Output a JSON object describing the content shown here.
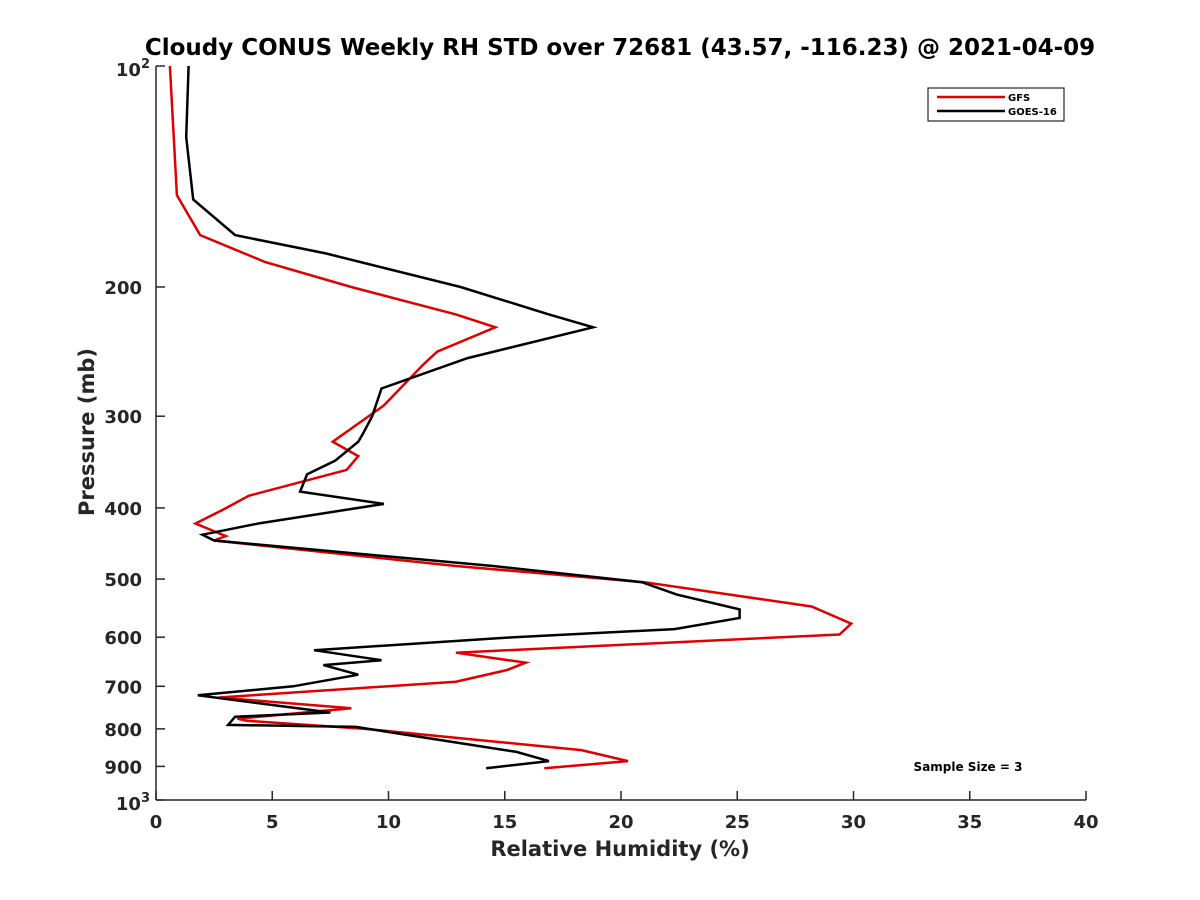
{
  "chart_data": {
    "type": "line",
    "title": "Cloudy CONUS Weekly RH STD over 72681 (43.57, -116.23) @ 2021-04-09",
    "xlabel": "Relative Humidity (%)",
    "ylabel": "Pressure (mb)",
    "xlim": [
      0,
      40
    ],
    "ylim": [
      100,
      1000
    ],
    "y_scale": "log",
    "y_reversed": true,
    "x_ticks": [
      0,
      5,
      10,
      15,
      20,
      25,
      30,
      35,
      40
    ],
    "y_ticks": [
      {
        "value": 100,
        "label": "10",
        "sup": "2"
      },
      {
        "value": 200,
        "label": "200"
      },
      {
        "value": 300,
        "label": "300"
      },
      {
        "value": 400,
        "label": "400"
      },
      {
        "value": 500,
        "label": "500"
      },
      {
        "value": 600,
        "label": "600"
      },
      {
        "value": 700,
        "label": "700"
      },
      {
        "value": 800,
        "label": "800"
      },
      {
        "value": 900,
        "label": "900"
      },
      {
        "value": 1000,
        "label": "10",
        "sup": "3"
      }
    ],
    "legend_position": "top-right",
    "grid": false,
    "annotation": "Sample Size = 3",
    "series": [
      {
        "name": "GFS",
        "color": "#e00000",
        "points": [
          [
            0.6,
            100
          ],
          [
            0.9,
            150
          ],
          [
            1.9,
            170
          ],
          [
            4.7,
            185
          ],
          [
            8.4,
            200
          ],
          [
            12.9,
            218
          ],
          [
            14.6,
            227
          ],
          [
            12.1,
            245
          ],
          [
            11.5,
            255
          ],
          [
            9.8,
            290
          ],
          [
            7.6,
            325
          ],
          [
            8.7,
            340
          ],
          [
            8.2,
            355
          ],
          [
            4.0,
            385
          ],
          [
            2.9,
            402
          ],
          [
            1.7,
            420
          ],
          [
            3.0,
            437
          ],
          [
            2.5,
            443
          ],
          [
            12.9,
            480
          ],
          [
            21.0,
            505
          ],
          [
            28.2,
            545
          ],
          [
            29.9,
            575
          ],
          [
            29.4,
            595
          ],
          [
            12.9,
            630
          ],
          [
            15.9,
            650
          ],
          [
            15.1,
            665
          ],
          [
            12.9,
            690
          ],
          [
            2.7,
            725
          ],
          [
            8.4,
            750
          ],
          [
            3.5,
            775
          ],
          [
            3.9,
            780
          ],
          [
            9.0,
            800
          ],
          [
            18.3,
            855
          ],
          [
            20.3,
            885
          ],
          [
            16.7,
            905
          ]
        ]
      },
      {
        "name": "GOES-16",
        "color": "#000000",
        "points": [
          [
            1.4,
            100
          ],
          [
            1.3,
            125
          ],
          [
            1.6,
            152
          ],
          [
            3.4,
            170
          ],
          [
            7.3,
            180
          ],
          [
            13.1,
            200
          ],
          [
            16.9,
            218
          ],
          [
            18.8,
            227
          ],
          [
            13.4,
            250
          ],
          [
            9.7,
            275
          ],
          [
            9.3,
            300
          ],
          [
            8.9,
            317
          ],
          [
            8.7,
            325
          ],
          [
            7.7,
            345
          ],
          [
            6.5,
            360
          ],
          [
            6.2,
            380
          ],
          [
            9.8,
            395
          ],
          [
            4.4,
            420
          ],
          [
            2.0,
            435
          ],
          [
            2.5,
            443
          ],
          [
            14.5,
            480
          ],
          [
            20.9,
            505
          ],
          [
            22.4,
            525
          ],
          [
            25.1,
            550
          ],
          [
            25.1,
            565
          ],
          [
            22.3,
            585
          ],
          [
            15.4,
            600
          ],
          [
            6.8,
            625
          ],
          [
            9.7,
            645
          ],
          [
            7.2,
            655
          ],
          [
            8.7,
            675
          ],
          [
            5.9,
            700
          ],
          [
            1.8,
            720
          ],
          [
            7.5,
            760
          ],
          [
            3.4,
            770
          ],
          [
            3.1,
            790
          ],
          [
            8.6,
            795
          ],
          [
            15.5,
            860
          ],
          [
            16.9,
            885
          ],
          [
            14.2,
            905
          ]
        ]
      }
    ]
  }
}
